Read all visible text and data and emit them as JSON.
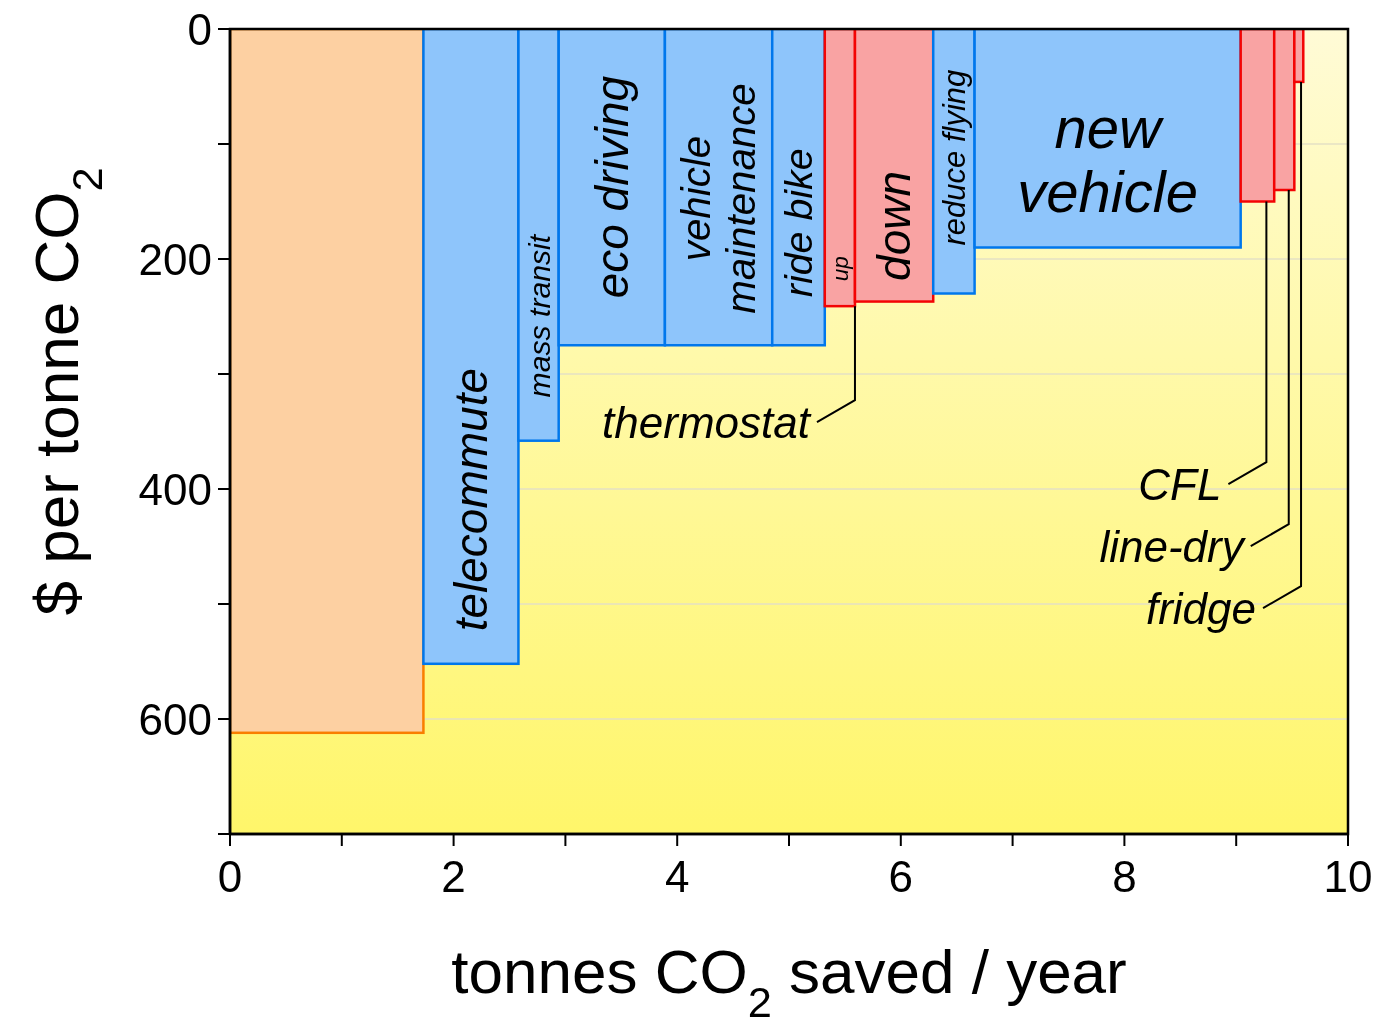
{
  "chart_data": {
    "type": "histogram",
    "bins": [
      0,
      1.73,
      2.58,
      2.94,
      3.89,
      4.85,
      5.32,
      5.59,
      6.29,
      6.66,
      9.04,
      9.34,
      9.52,
      9.6
    ],
    "values": [
      612,
      552,
      358,
      275,
      275,
      275,
      241,
      237,
      230,
      190,
      150,
      140,
      46
    ],
    "colors": [
      "#fdd0a2",
      "#8ec5fb",
      "#8ec5fb",
      "#8ec5fb",
      "#8ec5fb",
      "#8ec5fb",
      "#f9a3a3",
      "#f9a3a3",
      "#8ec5fb",
      "#8ec5fb",
      "#f9a3a3",
      "#f9a3a3",
      "#f9a3a3"
    ],
    "xlabel": "tonnes CO$_{2}$ saved / year",
    "ylabel": "$ per tonne CO$_{2}$",
    "xlim": [
      0,
      10
    ],
    "ylim": [
      700,
      0
    ],
    "xticks": [
      0,
      {
        "value": 1,
        "label": null
      },
      2,
      {
        "value": 3,
        "label": null
      },
      4,
      {
        "value": 5,
        "label": null
      },
      6,
      {
        "value": 7,
        "label": null
      },
      8,
      {
        "value": 9,
        "label": null
      },
      10
    ],
    "yticks": [
      0,
      {
        "value": 100,
        "label": null
      },
      200,
      {
        "value": 300,
        "label": null
      },
      400,
      {
        "value": 500,
        "label": null
      },
      600,
      {
        "value": 700,
        "label": null
      }
    ],
    "grid": "y",
    "annotations": [
      {
        "text": "telecommute",
        "x": 2.155,
        "y": 552
      },
      {
        "text": "mass transit",
        "x": 2.76,
        "y": 358
      },
      {
        "text": "eco driving",
        "x": 3.415,
        "y": 275
      },
      {
        "text": "vehicle\nmaintenance",
        "x": 4.37,
        "y": 275
      },
      {
        "text": "ride bike",
        "x": 5.085,
        "y": 275
      },
      {
        "text": "up",
        "x": 5.455,
        "y": 241
      },
      {
        "text": "down",
        "x": 5.94,
        "y": 237
      },
      {
        "text": "reduce flying",
        "x": 6.475,
        "y": 230
      },
      {
        "text": "new\nvehicle",
        "x": 7.85,
        "y": 190
      },
      {
        "text": "thermostat",
        "x": 5.59,
        "y": 241
      },
      {
        "text": "CFL",
        "x": 9.27,
        "y": 150
      },
      {
        "text": "line-dry",
        "x": 9.47,
        "y": 140
      },
      {
        "text": "fridge",
        "x": 9.58,
        "y": 46
      }
    ]
  }
}
